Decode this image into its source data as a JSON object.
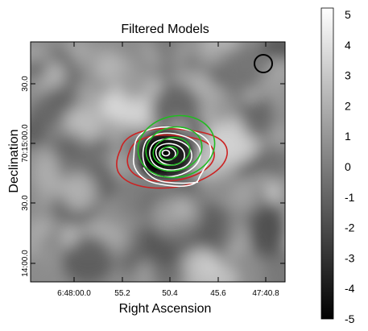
{
  "chart_data": {
    "type": "heatmap",
    "title": "Filtered Models",
    "xlabel": "Right Ascension",
    "ylabel": "Declination",
    "x_ticks": [
      "6:48:00.0",
      "55.2",
      "50.4",
      "45.6",
      "47:40.8"
    ],
    "y_ticks": [
      "30.0",
      "70:15:00.0",
      "30.0",
      "14:00.0"
    ],
    "colorbar": {
      "ticks": [
        "5",
        "4",
        "3",
        "2",
        "1",
        "0",
        "-1",
        "-2",
        "-3",
        "-4",
        "-5"
      ],
      "range": [
        -5,
        5
      ],
      "colormap": "grayscale, black = -5, white = 5"
    },
    "beam": "circle, top-right",
    "contour_colors": {
      "white": "#ffffff",
      "green": "#22bb22",
      "red": "#cc2222"
    },
    "background_color": "#8c8c8c"
  }
}
